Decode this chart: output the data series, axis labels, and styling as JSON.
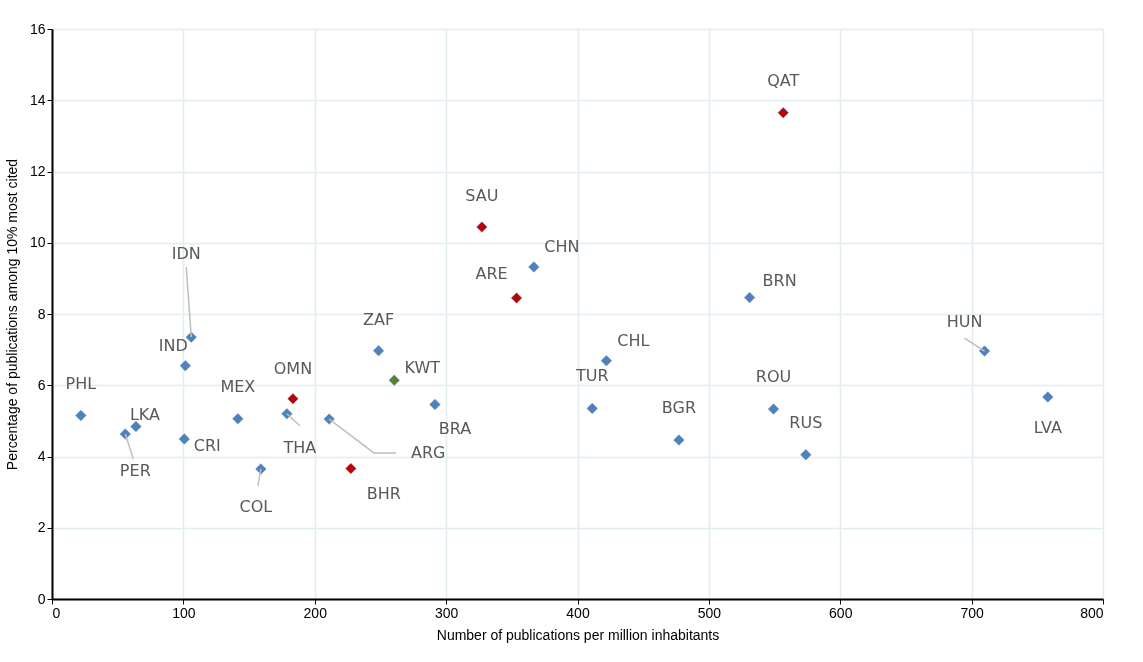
{
  "chart_data": {
    "type": "scatter",
    "xlabel": "Number of publications per million inhabitants",
    "ylabel": "Percentage of publications among 10% most cited",
    "xlim": [
      0,
      800
    ],
    "xticks": [
      0,
      100,
      200,
      300,
      400,
      500,
      600,
      700,
      800
    ],
    "ylim": [
      0,
      16
    ],
    "yticks": [
      0,
      2,
      4,
      6,
      8,
      10,
      12,
      14,
      16
    ],
    "grid": true,
    "marker": "diamond",
    "series": [
      {
        "color": "#4f81bd",
        "x": [
          22,
          55.8,
          63.9,
          106,
          101.5,
          100.7,
          141.5,
          159,
          178.8,
          211,
          248.6,
          291.5,
          366.8,
          422,
          411.2,
          531,
          709.8,
          758,
          477.2,
          549.2,
          573.8
        ],
        "values": [
          5.15,
          4.63,
          4.84,
          7.35,
          6.55,
          4.49,
          5.06,
          3.65,
          5.2,
          5.05,
          6.97,
          5.46,
          9.32,
          6.69,
          5.35,
          8.46,
          6.96,
          5.67,
          4.46,
          5.33,
          4.05
        ]
      },
      {
        "color": "#c00000",
        "x": [
          183.4,
          227.5,
          327.2,
          353.6,
          556.6
        ],
        "values": [
          5.62,
          3.66,
          10.44,
          8.45,
          13.65
        ]
      },
      {
        "color": "#548235",
        "x": [
          260.5
        ],
        "values": [
          6.14
        ]
      }
    ],
    "annotations": [
      {
        "text": "PHL",
        "x": 22,
        "y": 5.15
      },
      {
        "text": "PER",
        "x": 55.8,
        "y": 4.63
      },
      {
        "text": "LKA",
        "x": 63.9,
        "y": 4.84
      },
      {
        "text": "IDN",
        "x": 106,
        "y": 7.35
      },
      {
        "text": "IND",
        "x": 101.5,
        "y": 6.55
      },
      {
        "text": "CRI",
        "x": 100.7,
        "y": 4.49
      },
      {
        "text": "MEX",
        "x": 141.5,
        "y": 5.06
      },
      {
        "text": "COL",
        "x": 159,
        "y": 3.65
      },
      {
        "text": "OMN",
        "x": 183.4,
        "y": 5.62
      },
      {
        "text": "THA",
        "x": 178.8,
        "y": 5.2
      },
      {
        "text": "ARG",
        "x": 211,
        "y": 5.05
      },
      {
        "text": "BHR",
        "x": 227.5,
        "y": 3.66
      },
      {
        "text": "ZAF",
        "x": 248.6,
        "y": 6.97
      },
      {
        "text": "KWT",
        "x": 260.5,
        "y": 6.14
      },
      {
        "text": "BRA",
        "x": 291.5,
        "y": 5.46
      },
      {
        "text": "SAU",
        "x": 327.2,
        "y": 10.44
      },
      {
        "text": "ARE",
        "x": 353.6,
        "y": 8.45
      },
      {
        "text": "CHN",
        "x": 366.8,
        "y": 9.32
      },
      {
        "text": "CHL",
        "x": 422,
        "y": 6.69
      },
      {
        "text": "TUR",
        "x": 411.2,
        "y": 5.35
      },
      {
        "text": "QAT",
        "x": 556.6,
        "y": 13.65
      },
      {
        "text": "BRN",
        "x": 531,
        "y": 8.46
      },
      {
        "text": "HUN",
        "x": 709.8,
        "y": 6.96
      },
      {
        "text": "LVA",
        "x": 758,
        "y": 5.67
      },
      {
        "text": "BGR",
        "x": 477.2,
        "y": 4.46
      },
      {
        "text": "ROU",
        "x": 549.2,
        "y": 5.33
      },
      {
        "text": "RUS",
        "x": 573.8,
        "y": 4.05
      }
    ]
  }
}
